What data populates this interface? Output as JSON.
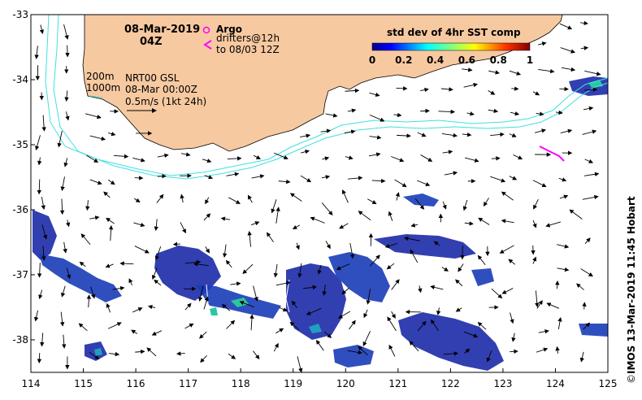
{
  "map": {
    "date": "08-Mar-2019",
    "time": "04Z",
    "argo_label": "Argo",
    "drifters_line1": "drifters@12h",
    "drifters_line2": "to 08/03 12Z",
    "isobath_200": "200m",
    "isobath_1000": "1000m",
    "model_line1": "NRT00 GSL",
    "model_line2": "08-Mar 00:00Z",
    "scale_label": "0.5m/s (1kt 24h)",
    "credit": "IMOS 13-Mar-2019 11:45 Hobart",
    "colorbar": {
      "title": "std dev of 4hr SST comp",
      "ticks": [
        "0",
        "0.2",
        "0.4",
        "0.6",
        "0.8",
        "1"
      ]
    },
    "x_ticks": [
      "114",
      "115",
      "116",
      "117",
      "118",
      "119",
      "120",
      "121",
      "122",
      "123",
      "124",
      "125"
    ],
    "y_ticks": [
      "-33",
      "-34",
      "-35",
      "-36",
      "-37",
      "-38"
    ],
    "lon_range": [
      114,
      125
    ],
    "lat_range": [
      -33,
      -38.5
    ],
    "colors": {
      "land": "#f7c9a0",
      "isobath": "#40e0e0",
      "sst_low": "#1c2aa8",
      "argo": "#ff00ff",
      "drifter": "#ff00ff"
    }
  }
}
